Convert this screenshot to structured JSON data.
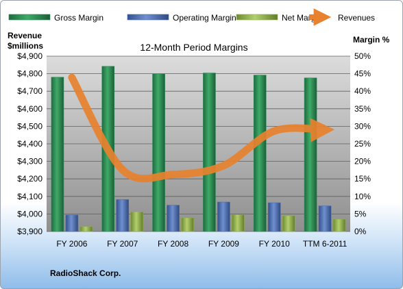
{
  "chart_data": {
    "type": "bar",
    "title": "12-Month Period Margins",
    "categories": [
      "FY 2006",
      "FY 2007",
      "FY 2008",
      "FY 2009",
      "FY 2010",
      "TTM 6-2011"
    ],
    "left_axis": {
      "label_line1": "Revenue",
      "label_line2": "$millions",
      "ylim": [
        3900,
        4900
      ],
      "ticks": [
        "$3,900",
        "$4,000",
        "$4,100",
        "$4,200",
        "$4,300",
        "$4,400",
        "$4,500",
        "$4,600",
        "$4,700",
        "$4,800",
        "$4,900"
      ]
    },
    "right_axis": {
      "label": "Margin %",
      "ylim": [
        0,
        50
      ],
      "ticks": [
        "0%",
        "5%",
        "10%",
        "15%",
        "20%",
        "25%",
        "30%",
        "35%",
        "40%",
        "45%",
        "50%"
      ]
    },
    "series": [
      {
        "name": "Gross Margin",
        "axis": "right",
        "kind": "bar",
        "color": "#2e8b57",
        "values": [
          44.0,
          47.1,
          45.0,
          45.2,
          44.6,
          43.8
        ]
      },
      {
        "name": "Operating Margin",
        "axis": "right",
        "kind": "bar",
        "color": "#4a6fb5",
        "values": [
          4.7,
          9.1,
          7.5,
          8.4,
          8.2,
          7.3
        ]
      },
      {
        "name": "Net Margin",
        "axis": "right",
        "kind": "bar",
        "color": "#8fb04a",
        "values": [
          1.4,
          5.6,
          3.9,
          4.8,
          4.5,
          3.5
        ]
      },
      {
        "name": "Revenues",
        "axis": "left",
        "kind": "line",
        "color": "#e8822e",
        "values": [
          4778,
          4252,
          4225,
          4276,
          4473,
          4480
        ]
      }
    ],
    "legend_position": "top",
    "grid": true
  },
  "footer": {
    "company": "RadioShack Corp."
  }
}
